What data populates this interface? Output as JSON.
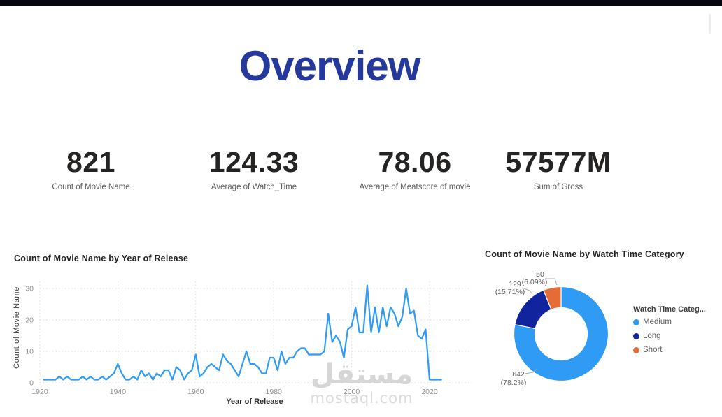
{
  "page": {
    "top_bar_color": "#06060f"
  },
  "header": {
    "title": "Overview",
    "title_color": "#24399B"
  },
  "kpis": [
    {
      "value": "821",
      "label": "Count of Movie Name"
    },
    {
      "value": "124.33",
      "label": "Average of Watch_Time"
    },
    {
      "value": "78.06",
      "label": "Average of Meatscore of movie"
    },
    {
      "value": "57577M",
      "label": "Sum of Gross"
    }
  ],
  "watermark": {
    "arabic": "مستقل",
    "latin": "mostaql.com"
  },
  "line_chart": {
    "title": "Count of Movie Name by Year of Release",
    "xlabel": "Year of Release",
    "ylabel": "Count of Movie Name"
  },
  "donut_chart": {
    "title": "Count of Movie Name by Watch Time Category",
    "legend_title": "Watch Time Categ...",
    "legend_items": [
      "Medium",
      "Long",
      "Short"
    ],
    "callouts": [
      {
        "value": "642",
        "pct": "(78.2%)"
      },
      {
        "value": "129",
        "pct": "(15.71%)"
      },
      {
        "value": "50",
        "pct": "(6.09%)"
      }
    ]
  },
  "chart_data": [
    {
      "type": "line",
      "title": "Count of Movie Name by Year of Release",
      "xlabel": "Year of Release",
      "ylabel": "Count of Movie Name",
      "xticks": [
        1920,
        1940,
        1960,
        1980,
        2000,
        2020
      ],
      "yticks": [
        0,
        10,
        20,
        30
      ],
      "xlim": [
        1920,
        2024
      ],
      "ylim": [
        0,
        32
      ],
      "grid": true,
      "line_color": "#2F9BF4",
      "x": [
        1921,
        1922,
        1923,
        1924,
        1925,
        1926,
        1927,
        1928,
        1929,
        1930,
        1931,
        1932,
        1933,
        1934,
        1935,
        1936,
        1937,
        1938,
        1939,
        1940,
        1941,
        1942,
        1943,
        1944,
        1945,
        1946,
        1947,
        1948,
        1949,
        1950,
        1951,
        1952,
        1953,
        1954,
        1955,
        1956,
        1957,
        1958,
        1959,
        1960,
        1961,
        1962,
        1963,
        1964,
        1965,
        1966,
        1967,
        1968,
        1969,
        1970,
        1971,
        1972,
        1973,
        1974,
        1975,
        1976,
        1977,
        1978,
        1979,
        1980,
        1981,
        1982,
        1983,
        1984,
        1985,
        1986,
        1987,
        1988,
        1989,
        1990,
        1991,
        1992,
        1993,
        1994,
        1995,
        1996,
        1997,
        1998,
        1999,
        2000,
        2001,
        2002,
        2003,
        2004,
        2005,
        2006,
        2007,
        2008,
        2009,
        2010,
        2011,
        2012,
        2013,
        2014,
        2015,
        2016,
        2017,
        2018,
        2019,
        2020,
        2021,
        2022,
        2023
      ],
      "values": [
        1,
        1,
        1,
        1,
        2,
        1,
        2,
        1,
        1,
        1,
        2,
        1,
        2,
        1,
        1,
        2,
        1,
        2,
        3,
        6,
        3,
        1,
        1,
        2,
        1,
        4,
        2,
        3,
        1,
        3,
        2,
        4,
        4,
        1,
        5,
        4,
        1,
        3,
        4,
        9,
        2,
        3,
        5,
        6,
        5,
        4,
        9,
        7,
        6,
        4,
        2,
        6,
        10,
        6,
        6,
        5,
        3,
        3,
        8,
        8,
        4,
        10,
        6,
        8,
        8,
        10,
        11,
        11,
        9,
        9,
        9,
        9,
        10,
        22,
        13,
        15,
        13,
        8,
        17,
        18,
        24,
        16,
        16,
        31,
        16,
        24,
        16,
        24,
        18,
        24,
        22,
        18,
        21,
        30,
        22,
        23,
        15,
        14,
        17,
        1,
        1,
        1,
        1
      ]
    },
    {
      "type": "pie",
      "subtype": "donut",
      "title": "Count of Movie Name by Watch Time Category",
      "legend_title": "Watch Time Categ...",
      "legend_position": "right",
      "categories": [
        "Medium",
        "Long",
        "Short"
      ],
      "values": [
        642,
        129,
        50
      ],
      "percent_labels": [
        "78.2%",
        "15.71%",
        "6.09%"
      ],
      "colors": [
        "#2F9BF4",
        "#12239E",
        "#E66C37"
      ],
      "clockwise_from_top": true
    }
  ]
}
